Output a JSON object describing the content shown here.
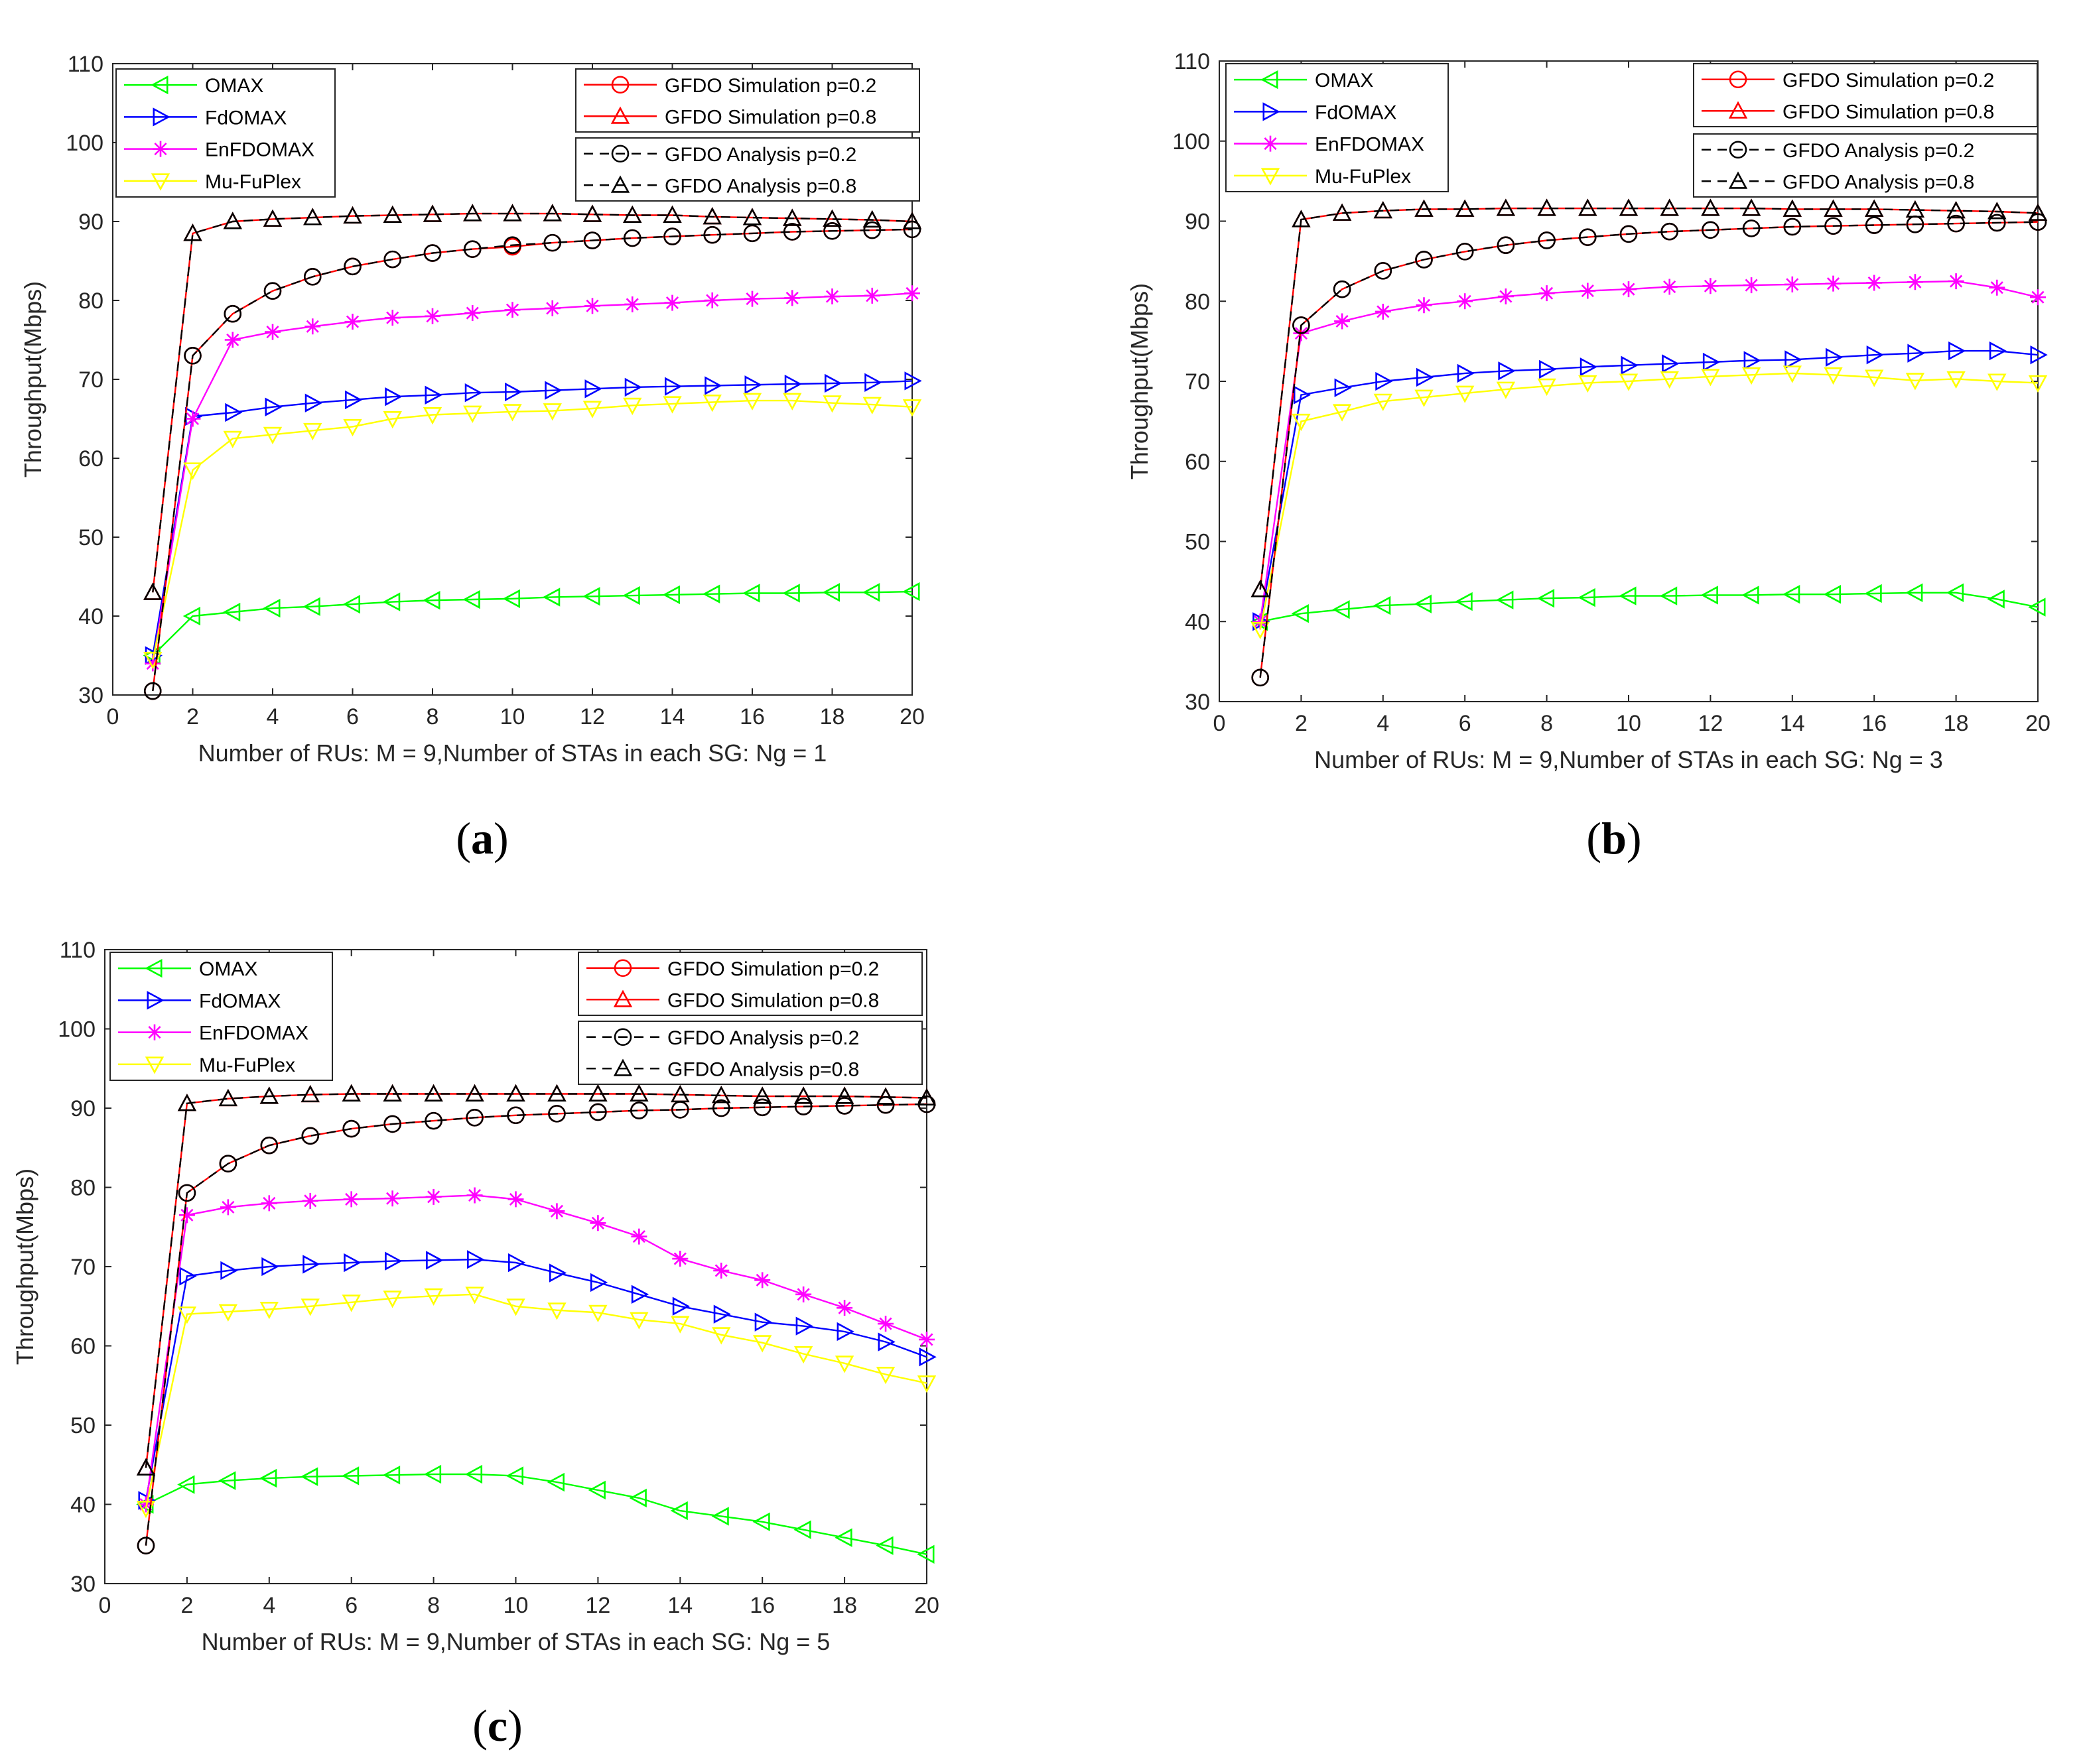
{
  "figure": {
    "panels_letters": [
      "a",
      "b",
      "c"
    ]
  },
  "chart_data": [
    {
      "type": "line",
      "panel": "a",
      "xlabel": "Number of RUs: M = 9,Number of STAs in each SG: Ng = 1",
      "ylabel": "Throughput(Mbps)",
      "xlim": [
        0,
        20
      ],
      "ylim": [
        30,
        110
      ],
      "xticks": [
        0,
        2,
        4,
        6,
        8,
        10,
        12,
        14,
        16,
        18,
        20
      ],
      "yticks": [
        30,
        40,
        50,
        60,
        70,
        80,
        90,
        100,
        110
      ],
      "x": [
        1,
        2,
        3,
        4,
        5,
        6,
        7,
        8,
        9,
        10,
        11,
        12,
        13,
        14,
        15,
        16,
        17,
        18,
        19,
        20
      ],
      "series": [
        {
          "name": "OMAX",
          "color": "#00ff00",
          "marker": "tri-left",
          "dash": "solid",
          "values": [
            35,
            40,
            40.5,
            41,
            41.2,
            41.5,
            41.8,
            42,
            42.1,
            42.2,
            42.4,
            42.5,
            42.6,
            42.7,
            42.8,
            42.9,
            42.9,
            43,
            43,
            43.1
          ]
        },
        {
          "name": "FdOMAX",
          "color": "#0000ff",
          "marker": "tri-right",
          "dash": "solid",
          "values": [
            35,
            65.3,
            65.8,
            66.5,
            67,
            67.4,
            67.8,
            68,
            68.3,
            68.4,
            68.6,
            68.8,
            69,
            69.1,
            69.2,
            69.3,
            69.4,
            69.5,
            69.6,
            69.8
          ]
        },
        {
          "name": "EnFDOMAX",
          "color": "#ff00ff",
          "marker": "star",
          "dash": "solid",
          "values": [
            34,
            65,
            75,
            76,
            76.7,
            77.3,
            77.8,
            78,
            78.4,
            78.8,
            79,
            79.3,
            79.5,
            79.7,
            80,
            80.2,
            80.3,
            80.5,
            80.6,
            80.9
          ]
        },
        {
          "name": "Mu-FuPlex",
          "color": "#ffff00",
          "marker": "tri-down",
          "dash": "solid",
          "values": [
            34.5,
            58.5,
            62.5,
            63,
            63.5,
            64,
            65,
            65.5,
            65.7,
            65.9,
            66,
            66.3,
            66.7,
            66.9,
            67.1,
            67.3,
            67.3,
            67,
            66.8,
            66.5
          ]
        },
        {
          "name": "GFDO Simulation p=0.2",
          "color": "#ff0000",
          "marker": "circle",
          "dash": "solid",
          "values": [
            30.5,
            73,
            78.3,
            81.2,
            83,
            84.3,
            85.2,
            86,
            86.5,
            86.8,
            87.3,
            87.6,
            87.9,
            88.1,
            88.3,
            88.5,
            88.7,
            88.8,
            88.9,
            89
          ]
        },
        {
          "name": "GFDO Simulation p=0.8",
          "color": "#ff0000",
          "marker": "triangle",
          "dash": "solid",
          "values": [
            43,
            88.5,
            90,
            90.3,
            90.5,
            90.7,
            90.8,
            90.9,
            91,
            91,
            91,
            90.9,
            90.8,
            90.8,
            90.6,
            90.5,
            90.4,
            90.3,
            90.2,
            90
          ]
        },
        {
          "name": "GFDO Analysis p=0.2",
          "color": "#000000",
          "marker": "circle",
          "dash": "dashed",
          "values": [
            30.5,
            73,
            78.3,
            81.2,
            83,
            84.3,
            85.2,
            86,
            86.5,
            87,
            87.3,
            87.6,
            87.9,
            88.1,
            88.3,
            88.5,
            88.7,
            88.8,
            88.9,
            89
          ]
        },
        {
          "name": "GFDO Analysis p=0.8",
          "color": "#000000",
          "marker": "triangle",
          "dash": "dashed",
          "values": [
            43,
            88.5,
            90,
            90.3,
            90.5,
            90.7,
            90.8,
            90.9,
            91,
            91,
            91,
            90.9,
            90.8,
            90.8,
            90.6,
            90.5,
            90.4,
            90.3,
            90.2,
            90
          ]
        }
      ]
    },
    {
      "type": "line",
      "panel": "b",
      "xlabel": "Number of RUs: M = 9,Number of STAs in each SG: Ng = 3",
      "ylabel": "Throughput(Mbps)",
      "xlim": [
        0,
        20
      ],
      "ylim": [
        30,
        110
      ],
      "xticks": [
        0,
        2,
        4,
        6,
        8,
        10,
        12,
        14,
        16,
        18,
        20
      ],
      "yticks": [
        30,
        40,
        50,
        60,
        70,
        80,
        90,
        100,
        110
      ],
      "x": [
        1,
        2,
        3,
        4,
        5,
        6,
        7,
        8,
        9,
        10,
        11,
        12,
        13,
        14,
        15,
        16,
        17,
        18,
        19,
        20
      ],
      "series": [
        {
          "name": "OMAX",
          "color": "#00ff00",
          "marker": "tri-left",
          "dash": "solid",
          "values": [
            40,
            41,
            41.5,
            42,
            42.2,
            42.5,
            42.7,
            42.9,
            43,
            43.2,
            43.2,
            43.3,
            43.3,
            43.4,
            43.4,
            43.5,
            43.6,
            43.6,
            42.8,
            41.8
          ]
        },
        {
          "name": "FdOMAX",
          "color": "#0000ff",
          "marker": "tri-right",
          "dash": "solid",
          "values": [
            40,
            68.3,
            69.2,
            70,
            70.5,
            71,
            71.3,
            71.5,
            71.8,
            72,
            72.2,
            72.4,
            72.6,
            72.7,
            73,
            73.3,
            73.5,
            73.8,
            73.8,
            73.3
          ]
        },
        {
          "name": "EnFDOMAX",
          "color": "#ff00ff",
          "marker": "star",
          "dash": "solid",
          "values": [
            40,
            76,
            77.5,
            78.7,
            79.5,
            80,
            80.6,
            81,
            81.3,
            81.5,
            81.8,
            81.9,
            82,
            82.1,
            82.2,
            82.3,
            82.4,
            82.5,
            81.7,
            80.5
          ]
        },
        {
          "name": "Mu-FuPlex",
          "color": "#ffff00",
          "marker": "tri-down",
          "dash": "solid",
          "values": [
            39,
            65,
            66.2,
            67.5,
            68,
            68.5,
            69,
            69.4,
            69.8,
            70,
            70.3,
            70.6,
            70.8,
            71,
            70.8,
            70.5,
            70.1,
            70.3,
            70,
            69.8
          ]
        },
        {
          "name": "GFDO Simulation p=0.2",
          "color": "#ff0000",
          "marker": "circle",
          "dash": "solid",
          "values": [
            33,
            77,
            81.5,
            83.8,
            85.2,
            86.2,
            87,
            87.6,
            88,
            88.4,
            88.7,
            88.9,
            89.1,
            89.3,
            89.4,
            89.5,
            89.6,
            89.7,
            89.8,
            89.9
          ]
        },
        {
          "name": "GFDO Simulation p=0.8",
          "color": "#ff0000",
          "marker": "triangle",
          "dash": "solid",
          "values": [
            44,
            90.2,
            91,
            91.3,
            91.5,
            91.5,
            91.6,
            91.6,
            91.6,
            91.6,
            91.6,
            91.6,
            91.6,
            91.5,
            91.5,
            91.5,
            91.4,
            91.3,
            91.2,
            91
          ]
        },
        {
          "name": "GFDO Analysis p=0.2",
          "color": "#000000",
          "marker": "circle",
          "dash": "dashed",
          "values": [
            33,
            77,
            81.5,
            83.8,
            85.2,
            86.2,
            87,
            87.6,
            88,
            88.4,
            88.7,
            88.9,
            89.1,
            89.3,
            89.4,
            89.5,
            89.6,
            89.7,
            89.8,
            89.9
          ]
        },
        {
          "name": "GFDO Analysis p=0.8",
          "color": "#000000",
          "marker": "triangle",
          "dash": "dashed",
          "values": [
            44,
            90.2,
            91,
            91.3,
            91.5,
            91.5,
            91.6,
            91.6,
            91.6,
            91.6,
            91.6,
            91.6,
            91.6,
            91.5,
            91.5,
            91.5,
            91.4,
            91.3,
            91.2,
            91
          ]
        }
      ]
    },
    {
      "type": "line",
      "panel": "c",
      "xlabel": "Number of RUs: M = 9,Number of STAs in each SG: Ng = 5",
      "ylabel": "Throughput(Mbps)",
      "xlim": [
        0,
        20
      ],
      "ylim": [
        30,
        110
      ],
      "xticks": [
        0,
        2,
        4,
        6,
        8,
        10,
        12,
        14,
        16,
        18,
        20
      ],
      "yticks": [
        30,
        40,
        50,
        60,
        70,
        80,
        90,
        100,
        110
      ],
      "x": [
        1,
        2,
        3,
        4,
        5,
        6,
        7,
        8,
        9,
        10,
        11,
        12,
        13,
        14,
        15,
        16,
        17,
        18,
        19,
        20
      ],
      "series": [
        {
          "name": "OMAX",
          "color": "#00ff00",
          "marker": "tri-left",
          "dash": "solid",
          "values": [
            40,
            42.5,
            43,
            43.3,
            43.5,
            43.6,
            43.7,
            43.8,
            43.8,
            43.6,
            42.8,
            41.8,
            40.8,
            39.2,
            38.5,
            37.8,
            36.8,
            35.8,
            34.8,
            33.7
          ]
        },
        {
          "name": "FdOMAX",
          "color": "#0000ff",
          "marker": "tri-right",
          "dash": "solid",
          "values": [
            40.5,
            68.8,
            69.5,
            70,
            70.3,
            70.5,
            70.7,
            70.8,
            70.9,
            70.5,
            69.2,
            68,
            66.5,
            65,
            64,
            63,
            62.5,
            61.8,
            60.5,
            58.6
          ]
        },
        {
          "name": "EnFDOMAX",
          "color": "#ff00ff",
          "marker": "star",
          "dash": "solid",
          "values": [
            40,
            76.5,
            77.5,
            78,
            78.3,
            78.5,
            78.6,
            78.8,
            79,
            78.5,
            77,
            75.5,
            73.8,
            71,
            69.5,
            68.3,
            66.5,
            64.8,
            62.8,
            60.8
          ]
        },
        {
          "name": "Mu-FuPlex",
          "color": "#ffff00",
          "marker": "tri-down",
          "dash": "solid",
          "values": [
            39.5,
            64,
            64.3,
            64.6,
            65,
            65.5,
            66,
            66.3,
            66.5,
            65,
            64.5,
            64.2,
            63.3,
            62.8,
            61.4,
            60.4,
            59,
            57.8,
            56.4,
            55.3
          ]
        },
        {
          "name": "GFDO Simulation p=0.2",
          "color": "#ff0000",
          "marker": "circle",
          "dash": "solid",
          "values": [
            34.8,
            79.3,
            83,
            85.3,
            86.5,
            87.4,
            88,
            88.4,
            88.8,
            89.1,
            89.3,
            89.5,
            89.7,
            89.8,
            90,
            90.1,
            90.2,
            90.3,
            90.4,
            90.5
          ]
        },
        {
          "name": "GFDO Simulation p=0.8",
          "color": "#ff0000",
          "marker": "triangle",
          "dash": "solid",
          "values": [
            44.6,
            90.6,
            91.2,
            91.5,
            91.7,
            91.8,
            91.8,
            91.8,
            91.8,
            91.8,
            91.8,
            91.8,
            91.8,
            91.7,
            91.6,
            91.5,
            91.5,
            91.5,
            91.4,
            91.3
          ]
        },
        {
          "name": "GFDO Analysis p=0.2",
          "color": "#000000",
          "marker": "circle",
          "dash": "dashed",
          "values": [
            34.8,
            79.3,
            83,
            85.3,
            86.5,
            87.4,
            88,
            88.4,
            88.8,
            89.1,
            89.3,
            89.5,
            89.7,
            89.8,
            90,
            90.1,
            90.2,
            90.3,
            90.4,
            90.5
          ]
        },
        {
          "name": "GFDO Analysis p=0.8",
          "color": "#000000",
          "marker": "triangle",
          "dash": "dashed",
          "values": [
            44.6,
            90.6,
            91.2,
            91.5,
            91.7,
            91.8,
            91.8,
            91.8,
            91.8,
            91.8,
            91.8,
            91.8,
            91.8,
            91.7,
            91.6,
            91.5,
            91.5,
            91.5,
            91.4,
            91.3
          ]
        }
      ]
    }
  ]
}
